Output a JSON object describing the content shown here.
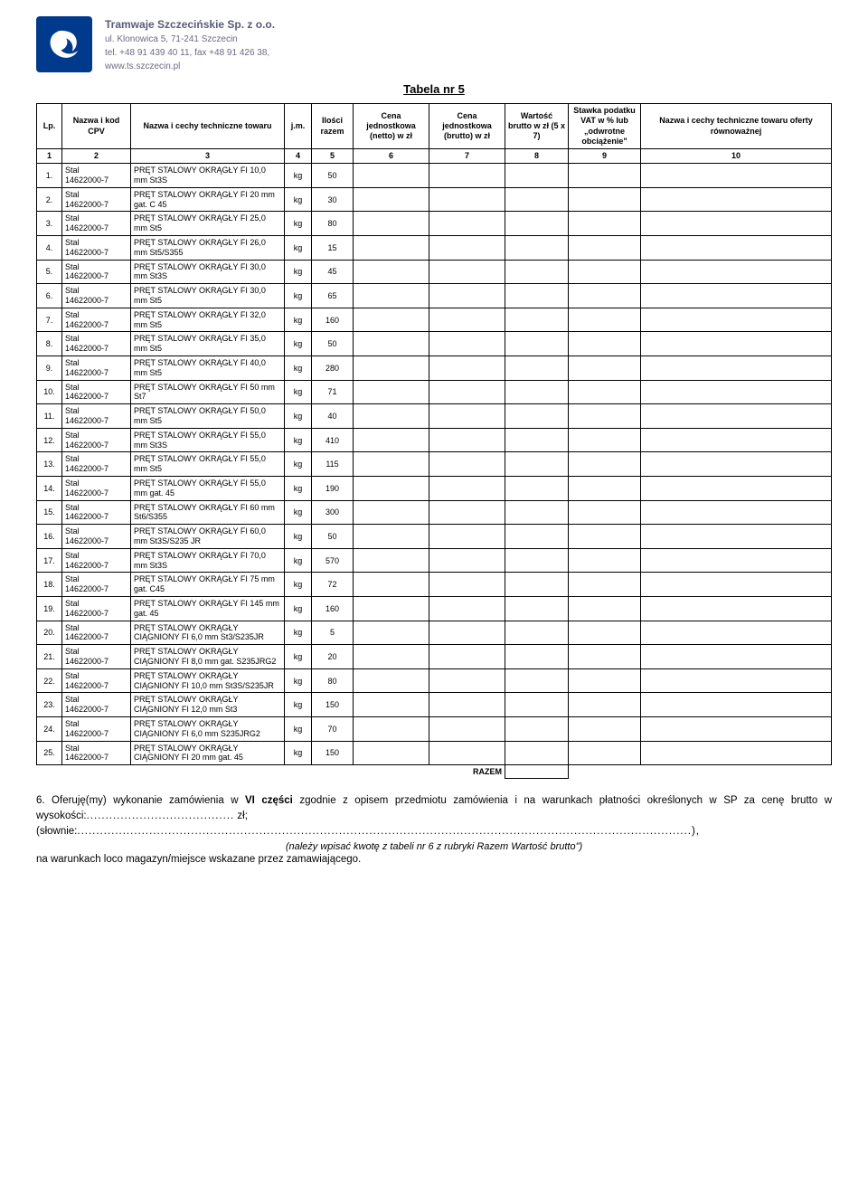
{
  "company": {
    "name": "Tramwaje Szczecińskie Sp. z o.o.",
    "address": "ul. Klonowica 5,  71-241  Szczecin",
    "phone": "tel. +48 91 439 40 11,  fax +48 91 426 38,",
    "web": "www.ts.szczecin.pl"
  },
  "table_title": "Tabela nr 5",
  "columns": {
    "h1": "Lp.",
    "h2": "Nazwa i kod CPV",
    "h3": "Nazwa i cechy techniczne towaru",
    "h4": "j.m.",
    "h5": "Ilości razem",
    "h6": "Cena jednostkowa (netto) w zł",
    "h7": "Cena jednostkowa (brutto) w zł",
    "h8": "Wartość brutto w zł (5 x 7)",
    "h9": "Stawka podatku VAT w % lub „odwrotne obciążenie\"",
    "h10": "Nazwa i cechy techniczne towaru oferty równoważnej",
    "n1": "1",
    "n2": "2",
    "n3": "3",
    "n4": "4",
    "n5": "5",
    "n6": "6",
    "n7": "7",
    "n8": "8",
    "n9": "9",
    "n10": "10"
  },
  "cpv_label": "Stal",
  "cpv_code": "14622000-7",
  "jm": "kg",
  "rows": [
    {
      "lp": "1.",
      "desc": "PRĘT STALOWY OKRĄGŁY FI 10,0 mm St3S",
      "qty": "50"
    },
    {
      "lp": "2.",
      "desc": "PRĘT STALOWY OKRĄGŁY FI 20 mm gat. C 45",
      "qty": "30"
    },
    {
      "lp": "3.",
      "desc": "PRĘT STALOWY OKRĄGŁY FI 25,0 mm St5",
      "qty": "80"
    },
    {
      "lp": "4.",
      "desc": "PRĘT STALOWY OKRĄGŁY FI 26,0 mm St5/S355",
      "qty": "15"
    },
    {
      "lp": "5.",
      "desc": "PRĘT STALOWY OKRĄGŁY FI 30,0 mm St3S",
      "qty": "45"
    },
    {
      "lp": "6.",
      "desc": "PRĘT STALOWY OKRĄGŁY FI 30,0 mm St5",
      "qty": "65"
    },
    {
      "lp": "7.",
      "desc": "PRĘT STALOWY OKRĄGŁY FI 32,0 mm St5",
      "qty": "160"
    },
    {
      "lp": "8.",
      "desc": "PRĘT STALOWY OKRĄGŁY FI 35,0 mm St5",
      "qty": "50"
    },
    {
      "lp": "9.",
      "desc": "PRĘT STALOWY OKRĄGŁY FI 40,0 mm St5",
      "qty": "280"
    },
    {
      "lp": "10.",
      "desc": "PRĘT STALOWY OKRĄGŁY FI 50 mm St7",
      "qty": "71"
    },
    {
      "lp": "11.",
      "desc": "PRĘT STALOWY OKRĄGŁY FI 50,0 mm St5",
      "qty": "40"
    },
    {
      "lp": "12.",
      "desc": "PRĘT STALOWY OKRĄGŁY FI 55,0 mm St3S",
      "qty": "410"
    },
    {
      "lp": "13.",
      "desc": "PRĘT STALOWY OKRĄGŁY FI 55,0 mm St5",
      "qty": "115"
    },
    {
      "lp": "14.",
      "desc": "PRĘT STALOWY OKRĄGŁY FI 55,0 mm gat. 45",
      "qty": "190"
    },
    {
      "lp": "15.",
      "desc": "PRĘT STALOWY OKRĄGŁY FI 60 mm St6/S355",
      "qty": "300"
    },
    {
      "lp": "16.",
      "desc": "PRĘT STALOWY OKRĄGŁY FI 60,0 mm St3S/S235 JR",
      "qty": "50"
    },
    {
      "lp": "17.",
      "desc": "PRĘT STALOWY OKRĄGŁY FI 70,0 mm St3S",
      "qty": "570"
    },
    {
      "lp": "18.",
      "desc": "PRĘT STALOWY OKRĄGŁY FI 75 mm gat. C45",
      "qty": "72"
    },
    {
      "lp": "19.",
      "desc": "PRĘT STALOWY OKRĄGŁY FI 145 mm gat. 45",
      "qty": "160"
    },
    {
      "lp": "20.",
      "desc": "PRĘT STALOWY OKRĄGŁY CIĄGNIONY FI  6,0 mm St3/S235JR",
      "qty": "5"
    },
    {
      "lp": "21.",
      "desc": "PRĘT STALOWY OKRĄGŁY CIĄGNIONY FI 8,0 mm gat. S235JRG2",
      "qty": "20"
    },
    {
      "lp": "22.",
      "desc": "PRĘT STALOWY OKRĄGŁY CIĄGNIONY FI 10,0 mm St3S/S235JR",
      "qty": "80"
    },
    {
      "lp": "23.",
      "desc": "PRĘT STALOWY OKRĄGŁY CIĄGNIONY FI 12,0 mm St3",
      "qty": "150"
    },
    {
      "lp": "24.",
      "desc": "PRĘT STALOWY OKRĄGŁY CIĄGNIONY FI 6,0 mm S235JRG2",
      "qty": "70"
    },
    {
      "lp": "25.",
      "desc": "PRĘT STALOWY OKRĄGŁY CIĄGNIONY FI 20 mm gat. 45",
      "qty": "150"
    }
  ],
  "razem_label": "RAZEM",
  "footer": {
    "line1_prefix": "6. Oferuję(my) wykonanie zamówienia w ",
    "line1_bold": "VI części",
    "line1_suffix": " zgodnie z opisem przedmiotu zamówienia i na warunkach płatności określonych w SP za cenę brutto w wysokości:",
    "dots1": ".......................................",
    "zl": " zł;",
    "slownie": "(słownie:",
    "dots2": "..................................................................................................................................................................),",
    "instr": "(należy wpisać kwotę z tabeli nr 6 z rubryki Razem Wartość brutto\")",
    "line2": "na warunkach loco magazyn/miejsce wskazane przez zamawiającego."
  }
}
